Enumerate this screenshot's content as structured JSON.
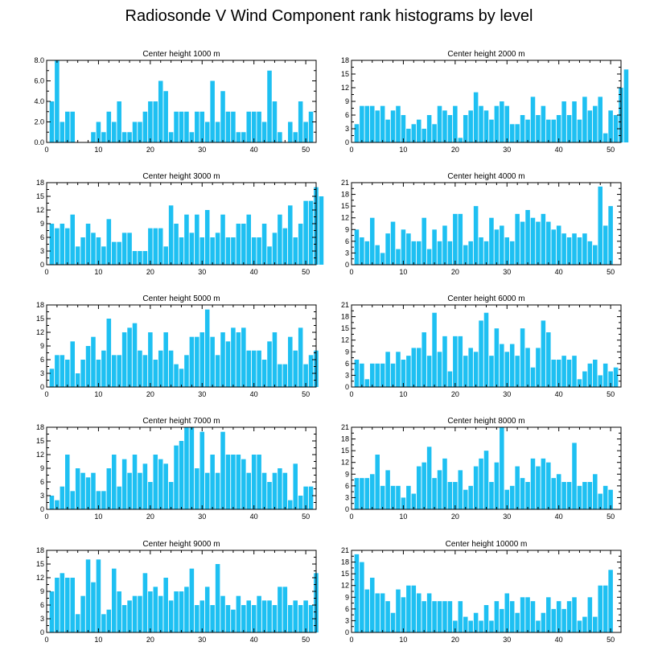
{
  "title": "Radiosonde V Wind Component rank histograms by level",
  "bar_color": "#1ec0f2",
  "chart_data": [
    {
      "type": "bar",
      "title": "Center height 1000 m",
      "xlim": [
        0,
        52
      ],
      "ylim": [
        0,
        8
      ],
      "xticks": [
        "0",
        "10",
        "20",
        "30",
        "40",
        "50"
      ],
      "yticks": [
        "0.0",
        "2.0",
        "4.0",
        "6.0",
        "8.0"
      ],
      "values": [
        4,
        8,
        2,
        3,
        3,
        0,
        0,
        0,
        1,
        2,
        1,
        3,
        2,
        4,
        1,
        1,
        2,
        2,
        3,
        4,
        4,
        6,
        5,
        1,
        3,
        3,
        3,
        1,
        3,
        3,
        2,
        6,
        2,
        5,
        3,
        3,
        1,
        1,
        3,
        3,
        3,
        2,
        7,
        4,
        1,
        0,
        2,
        1,
        4,
        2,
        3
      ]
    },
    {
      "type": "bar",
      "title": "Center height 2000 m",
      "xlim": [
        0,
        52
      ],
      "ylim": [
        0,
        18
      ],
      "xticks": [
        "0",
        "10",
        "20",
        "30",
        "40",
        "50"
      ],
      "yticks": [
        "0",
        "3",
        "6",
        "9",
        "12",
        "15",
        "18"
      ],
      "values": [
        4,
        8,
        8,
        8,
        7,
        8,
        5,
        7,
        8,
        6,
        3,
        4,
        5,
        3,
        6,
        4,
        8,
        7,
        6,
        8,
        1,
        6,
        7,
        11,
        8,
        7,
        5,
        8,
        9,
        8,
        4,
        4,
        6,
        5,
        10,
        6,
        8,
        5,
        5,
        6,
        9,
        6,
        9,
        5,
        10,
        7,
        8,
        10,
        2,
        7,
        6,
        12,
        16
      ]
    },
    {
      "type": "bar",
      "title": "Center height 3000 m",
      "xlim": [
        0,
        52
      ],
      "ylim": [
        0,
        18
      ],
      "xticks": [
        "0",
        "10",
        "20",
        "30",
        "40",
        "50"
      ],
      "yticks": [
        "0",
        "3",
        "6",
        "9",
        "12",
        "15",
        "18"
      ],
      "values": [
        9,
        8,
        9,
        8,
        11,
        4,
        6,
        9,
        7,
        6,
        4,
        10,
        5,
        5,
        7,
        7,
        3,
        3,
        3,
        8,
        8,
        8,
        4,
        13,
        9,
        6,
        11,
        7,
        11,
        6,
        12,
        6,
        7,
        11,
        6,
        6,
        9,
        9,
        11,
        6,
        6,
        9,
        4,
        7,
        11,
        8,
        13,
        6,
        9,
        14,
        14,
        17,
        15
      ]
    },
    {
      "type": "bar",
      "title": "Center height 4000 m",
      "xlim": [
        0,
        52
      ],
      "ylim": [
        0,
        21
      ],
      "xticks": [
        "0",
        "10",
        "20",
        "30",
        "40",
        "50"
      ],
      "yticks": [
        "0",
        "3",
        "6",
        "9",
        "12",
        "15",
        "18",
        "21"
      ],
      "values": [
        9,
        7,
        6,
        12,
        5,
        3,
        8,
        11,
        4,
        9,
        8,
        6,
        6,
        12,
        4,
        9,
        6,
        10,
        6,
        13,
        13,
        5,
        6,
        15,
        7,
        6,
        12,
        9,
        10,
        7,
        6,
        13,
        11,
        14,
        12,
        11,
        13,
        11,
        9,
        10,
        8,
        7,
        8,
        7,
        8,
        6,
        5,
        20,
        10,
        15
      ]
    },
    {
      "type": "bar",
      "title": "Center height 5000 m",
      "xlim": [
        0,
        52
      ],
      "ylim": [
        0,
        18
      ],
      "xticks": [
        "0",
        "10",
        "20",
        "30",
        "40",
        "50"
      ],
      "yticks": [
        "0",
        "3",
        "6",
        "9",
        "12",
        "15",
        "18"
      ],
      "values": [
        4,
        7,
        7,
        6,
        10,
        3,
        6,
        9,
        11,
        6,
        8,
        15,
        7,
        7,
        12,
        13,
        14,
        8,
        7,
        12,
        6,
        8,
        12,
        8,
        5,
        4,
        7,
        11,
        11,
        12,
        17,
        11,
        7,
        12,
        10,
        13,
        12,
        13,
        8,
        8,
        8,
        6,
        10,
        12,
        5,
        5,
        11,
        8,
        13,
        5,
        7,
        8
      ]
    },
    {
      "type": "bar",
      "title": "Center height 6000 m",
      "xlim": [
        0,
        52
      ],
      "ylim": [
        0,
        21
      ],
      "xticks": [
        "0",
        "10",
        "20",
        "30",
        "40",
        "50"
      ],
      "yticks": [
        "0",
        "3",
        "6",
        "9",
        "12",
        "15",
        "18",
        "21"
      ],
      "values": [
        7,
        6,
        2,
        6,
        6,
        6,
        9,
        6,
        9,
        7,
        8,
        10,
        10,
        14,
        8,
        19,
        9,
        13,
        4,
        13,
        13,
        8,
        10,
        9,
        17,
        19,
        8,
        15,
        11,
        9,
        11,
        8,
        15,
        10,
        5,
        10,
        17,
        14,
        7,
        7,
        8,
        7,
        8,
        2,
        4,
        6,
        7,
        3,
        6,
        4,
        5
      ]
    },
    {
      "type": "bar",
      "title": "Center height 7000 m",
      "xlim": [
        0,
        52
      ],
      "ylim": [
        0,
        18
      ],
      "xticks": [
        "0",
        "10",
        "20",
        "30",
        "40",
        "50"
      ],
      "yticks": [
        "0",
        "3",
        "6",
        "9",
        "12",
        "15",
        "18"
      ],
      "values": [
        3,
        2,
        5,
        12,
        4,
        9,
        8,
        7,
        8,
        4,
        4,
        9,
        12,
        5,
        11,
        8,
        12,
        8,
        10,
        6,
        12,
        11,
        10,
        6,
        14,
        15,
        18,
        18,
        9,
        17,
        8,
        12,
        8,
        17,
        12,
        12,
        12,
        11,
        8,
        12,
        12,
        8,
        6,
        8,
        9,
        8,
        2,
        10,
        3,
        5,
        5
      ]
    },
    {
      "type": "bar",
      "title": "Center height 8000 m",
      "xlim": [
        0,
        52
      ],
      "ylim": [
        0,
        21
      ],
      "xticks": [
        "0",
        "10",
        "20",
        "30",
        "40",
        "50"
      ],
      "yticks": [
        "0",
        "3",
        "6",
        "9",
        "12",
        "15",
        "18",
        "21"
      ],
      "values": [
        8,
        8,
        8,
        9,
        14,
        6,
        10,
        6,
        6,
        3,
        6,
        4,
        11,
        12,
        16,
        8,
        10,
        13,
        7,
        7,
        10,
        5,
        6,
        11,
        13,
        15,
        7,
        12,
        21,
        5,
        6,
        11,
        8,
        7,
        13,
        11,
        13,
        12,
        8,
        9,
        7,
        7,
        17,
        6,
        7,
        7,
        9,
        4,
        6,
        5
      ]
    },
    {
      "type": "bar",
      "title": "Center height 9000 m",
      "xlim": [
        0,
        52
      ],
      "ylim": [
        0,
        18
      ],
      "xticks": [
        "0",
        "10",
        "20",
        "30",
        "40",
        "50"
      ],
      "yticks": [
        "0",
        "3",
        "6",
        "9",
        "12",
        "15",
        "18"
      ],
      "values": [
        9,
        12,
        13,
        12,
        12,
        4,
        8,
        16,
        11,
        16,
        4,
        5,
        14,
        9,
        6,
        7,
        8,
        8,
        13,
        9,
        10,
        8,
        12,
        7,
        9,
        9,
        10,
        14,
        6,
        7,
        10,
        6,
        15,
        8,
        6,
        5,
        8,
        6,
        7,
        6,
        8,
        7,
        7,
        6,
        10,
        10,
        6,
        7,
        6,
        7,
        6,
        13
      ]
    },
    {
      "type": "bar",
      "title": "Center height 10000 m",
      "xlim": [
        0,
        52
      ],
      "ylim": [
        0,
        21
      ],
      "xticks": [
        "0",
        "10",
        "20",
        "30",
        "40",
        "50"
      ],
      "yticks": [
        "0",
        "3",
        "6",
        "9",
        "12",
        "15",
        "18",
        "21"
      ],
      "values": [
        20,
        18,
        11,
        14,
        10,
        10,
        8,
        5,
        11,
        9,
        12,
        12,
        10,
        8,
        10,
        8,
        8,
        8,
        8,
        3,
        8,
        4,
        3,
        5,
        3,
        7,
        3,
        8,
        6,
        10,
        8,
        5,
        9,
        9,
        8,
        3,
        5,
        9,
        6,
        8,
        6,
        8,
        9,
        3,
        4,
        9,
        4,
        12,
        12,
        16
      ]
    }
  ]
}
